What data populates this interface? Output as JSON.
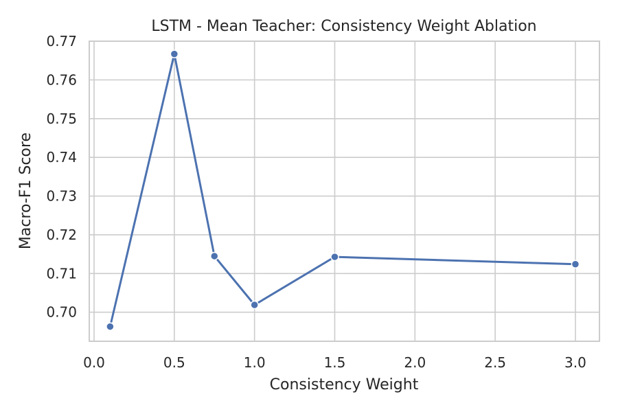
{
  "chart_data": {
    "type": "line",
    "title": "LSTM - Mean Teacher: Consistency Weight Ablation",
    "xlabel": "Consistency Weight",
    "ylabel": "Macro-F1 Score",
    "xlim": [
      -0.03,
      3.15
    ],
    "ylim": [
      0.6925,
      0.77
    ],
    "x_ticks": [
      "0.0",
      "0.5",
      "1.0",
      "1.5",
      "2.0",
      "2.5",
      "3.0"
    ],
    "y_ticks": [
      "0.70",
      "0.71",
      "0.72",
      "0.73",
      "0.74",
      "0.75",
      "0.76",
      "0.77"
    ],
    "grid": true,
    "series": [
      {
        "color": "#4c72b0",
        "x": [
          0.1,
          0.5,
          0.75,
          1.0,
          1.5,
          3.0
        ],
        "y": [
          0.6963,
          0.7667,
          0.7145,
          0.7019,
          0.7143,
          0.7124
        ]
      }
    ]
  }
}
